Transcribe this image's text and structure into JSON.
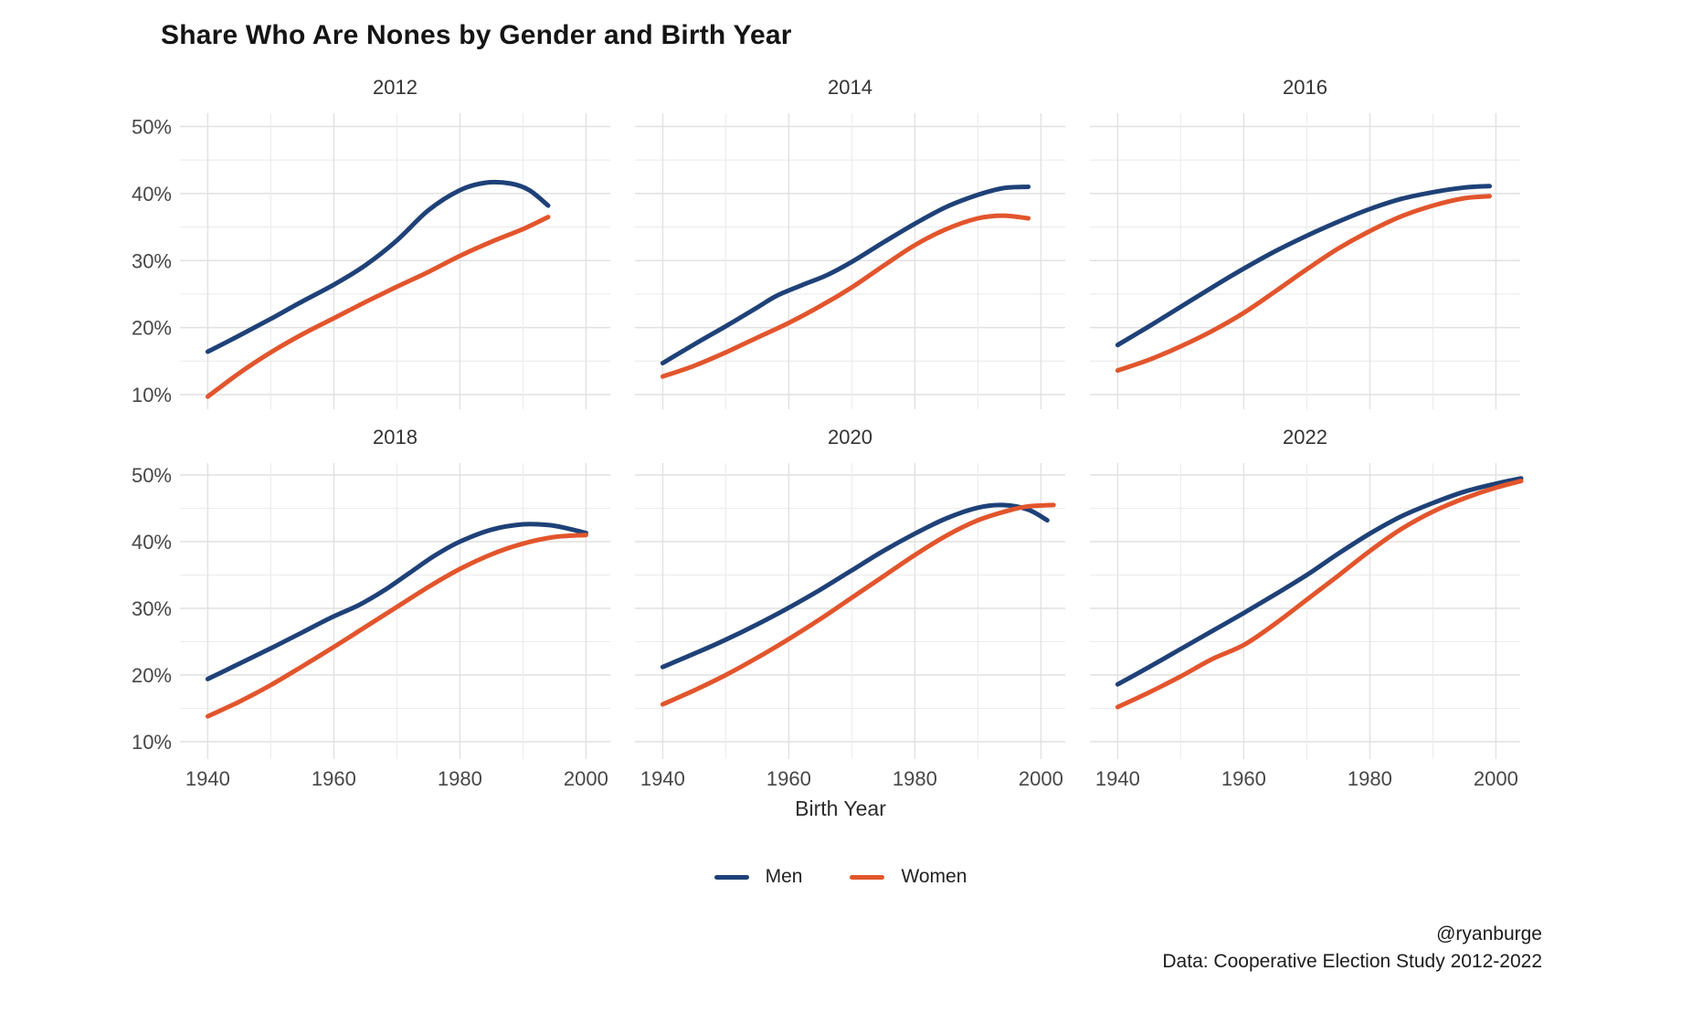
{
  "title": "Share Who Are Nones by Gender and Birth Year",
  "x_axis_title": "Birth Year",
  "legend": {
    "men": "Men",
    "women": "Women"
  },
  "caption": {
    "handle": "@ryanburge",
    "source": "Data: Cooperative Election Study 2012-2022"
  },
  "chart_data": {
    "type": "line",
    "title": "Share Who Are Nones by Gender and Birth Year",
    "xlabel": "Birth Year",
    "ylabel": "",
    "grid": true,
    "legend_position": "bottom",
    "colors": {
      "Men": "#1e4178",
      "Women": "#e2552c"
    },
    "x_ticks": [
      "1940",
      "1960",
      "1980",
      "2000"
    ],
    "x_tick_values": [
      1940,
      1960,
      1980,
      2000
    ],
    "y_ticks": [
      "10%",
      "20%",
      "30%",
      "40%",
      "50%"
    ],
    "y_tick_values": [
      10,
      20,
      30,
      40,
      50
    ],
    "xlim": [
      1936,
      2006
    ],
    "ylim": [
      10,
      50
    ],
    "facets": [
      {
        "label": "2012",
        "series": [
          {
            "name": "Men",
            "points": [
              [
                1940,
                16.4
              ],
              [
                1945,
                18.8
              ],
              [
                1950,
                21.3
              ],
              [
                1955,
                23.9
              ],
              [
                1960,
                26.4
              ],
              [
                1965,
                29.3
              ],
              [
                1970,
                33.0
              ],
              [
                1975,
                37.5
              ],
              [
                1980,
                40.5
              ],
              [
                1984,
                41.6
              ],
              [
                1988,
                41.5
              ],
              [
                1991,
                40.5
              ],
              [
                1994,
                38.2
              ]
            ]
          },
          {
            "name": "Women",
            "points": [
              [
                1940,
                9.7
              ],
              [
                1945,
                13.2
              ],
              [
                1950,
                16.3
              ],
              [
                1955,
                19.0
              ],
              [
                1960,
                21.4
              ],
              [
                1965,
                23.8
              ],
              [
                1970,
                26.1
              ],
              [
                1975,
                28.3
              ],
              [
                1980,
                30.7
              ],
              [
                1985,
                32.8
              ],
              [
                1990,
                34.7
              ],
              [
                1994,
                36.5
              ]
            ]
          }
        ]
      },
      {
        "label": "2014",
        "series": [
          {
            "name": "Men",
            "points": [
              [
                1940,
                14.7
              ],
              [
                1945,
                17.5
              ],
              [
                1950,
                20.2
              ],
              [
                1955,
                23.0
              ],
              [
                1958,
                24.7
              ],
              [
                1962,
                26.3
              ],
              [
                1966,
                27.8
              ],
              [
                1970,
                29.8
              ],
              [
                1975,
                32.7
              ],
              [
                1980,
                35.5
              ],
              [
                1985,
                38.0
              ],
              [
                1990,
                39.8
              ],
              [
                1994,
                40.8
              ],
              [
                1998,
                41.0
              ]
            ]
          },
          {
            "name": "Women",
            "points": [
              [
                1940,
                12.7
              ],
              [
                1945,
                14.3
              ],
              [
                1950,
                16.3
              ],
              [
                1955,
                18.5
              ],
              [
                1960,
                20.7
              ],
              [
                1965,
                23.2
              ],
              [
                1970,
                26.0
              ],
              [
                1975,
                29.2
              ],
              [
                1980,
                32.3
              ],
              [
                1985,
                34.7
              ],
              [
                1990,
                36.3
              ],
              [
                1994,
                36.7
              ],
              [
                1998,
                36.3
              ]
            ]
          }
        ]
      },
      {
        "label": "2016",
        "series": [
          {
            "name": "Men",
            "points": [
              [
                1940,
                17.4
              ],
              [
                1945,
                20.2
              ],
              [
                1950,
                23.1
              ],
              [
                1955,
                26.0
              ],
              [
                1960,
                28.8
              ],
              [
                1965,
                31.4
              ],
              [
                1970,
                33.7
              ],
              [
                1975,
                35.8
              ],
              [
                1980,
                37.7
              ],
              [
                1985,
                39.2
              ],
              [
                1990,
                40.2
              ],
              [
                1995,
                40.9
              ],
              [
                1999,
                41.1
              ]
            ]
          },
          {
            "name": "Women",
            "points": [
              [
                1940,
                13.6
              ],
              [
                1945,
                15.2
              ],
              [
                1950,
                17.2
              ],
              [
                1955,
                19.5
              ],
              [
                1960,
                22.2
              ],
              [
                1965,
                25.4
              ],
              [
                1970,
                28.7
              ],
              [
                1975,
                31.8
              ],
              [
                1980,
                34.4
              ],
              [
                1985,
                36.6
              ],
              [
                1990,
                38.2
              ],
              [
                1995,
                39.3
              ],
              [
                1999,
                39.6
              ]
            ]
          }
        ]
      },
      {
        "label": "2018",
        "series": [
          {
            "name": "Men",
            "points": [
              [
                1940,
                19.4
              ],
              [
                1945,
                21.7
              ],
              [
                1950,
                24.0
              ],
              [
                1955,
                26.4
              ],
              [
                1960,
                28.8
              ],
              [
                1964,
                30.5
              ],
              [
                1968,
                32.7
              ],
              [
                1972,
                35.3
              ],
              [
                1976,
                37.9
              ],
              [
                1980,
                40.0
              ],
              [
                1985,
                41.8
              ],
              [
                1990,
                42.6
              ],
              [
                1994,
                42.5
              ],
              [
                1997,
                42.0
              ],
              [
                2000,
                41.3
              ]
            ]
          },
          {
            "name": "Women",
            "points": [
              [
                1940,
                13.8
              ],
              [
                1945,
                16.0
              ],
              [
                1950,
                18.5
              ],
              [
                1955,
                21.3
              ],
              [
                1960,
                24.2
              ],
              [
                1965,
                27.2
              ],
              [
                1970,
                30.2
              ],
              [
                1975,
                33.2
              ],
              [
                1980,
                35.9
              ],
              [
                1985,
                38.1
              ],
              [
                1990,
                39.7
              ],
              [
                1995,
                40.7
              ],
              [
                2000,
                41.0
              ]
            ]
          }
        ]
      },
      {
        "label": "2020",
        "series": [
          {
            "name": "Men",
            "points": [
              [
                1940,
                21.2
              ],
              [
                1945,
                23.2
              ],
              [
                1950,
                25.3
              ],
              [
                1955,
                27.6
              ],
              [
                1960,
                30.1
              ],
              [
                1965,
                32.8
              ],
              [
                1970,
                35.7
              ],
              [
                1975,
                38.6
              ],
              [
                1980,
                41.2
              ],
              [
                1985,
                43.5
              ],
              [
                1990,
                45.1
              ],
              [
                1994,
                45.5
              ],
              [
                1998,
                44.8
              ],
              [
                2001,
                43.2
              ]
            ]
          },
          {
            "name": "Women",
            "points": [
              [
                1940,
                15.6
              ],
              [
                1945,
                17.7
              ],
              [
                1950,
                20.0
              ],
              [
                1955,
                22.6
              ],
              [
                1960,
                25.4
              ],
              [
                1965,
                28.4
              ],
              [
                1970,
                31.6
              ],
              [
                1975,
                34.8
              ],
              [
                1980,
                38.0
              ],
              [
                1985,
                40.9
              ],
              [
                1990,
                43.2
              ],
              [
                1995,
                44.7
              ],
              [
                1998,
                45.3
              ],
              [
                2002,
                45.5
              ]
            ]
          }
        ]
      },
      {
        "label": "2022",
        "series": [
          {
            "name": "Men",
            "points": [
              [
                1940,
                18.6
              ],
              [
                1945,
                21.2
              ],
              [
                1950,
                23.9
              ],
              [
                1955,
                26.6
              ],
              [
                1960,
                29.3
              ],
              [
                1965,
                32.1
              ],
              [
                1970,
                35.0
              ],
              [
                1975,
                38.2
              ],
              [
                1980,
                41.2
              ],
              [
                1985,
                43.8
              ],
              [
                1990,
                45.8
              ],
              [
                1995,
                47.5
              ],
              [
                2000,
                48.7
              ],
              [
                2004,
                49.5
              ]
            ]
          },
          {
            "name": "Women",
            "points": [
              [
                1940,
                15.2
              ],
              [
                1945,
                17.4
              ],
              [
                1950,
                19.8
              ],
              [
                1955,
                22.4
              ],
              [
                1960,
                24.5
              ],
              [
                1965,
                27.7
              ],
              [
                1970,
                31.3
              ],
              [
                1975,
                34.9
              ],
              [
                1980,
                38.6
              ],
              [
                1985,
                41.9
              ],
              [
                1990,
                44.5
              ],
              [
                1995,
                46.5
              ],
              [
                2000,
                48.1
              ],
              [
                2004,
                49.1
              ]
            ]
          }
        ]
      }
    ]
  }
}
